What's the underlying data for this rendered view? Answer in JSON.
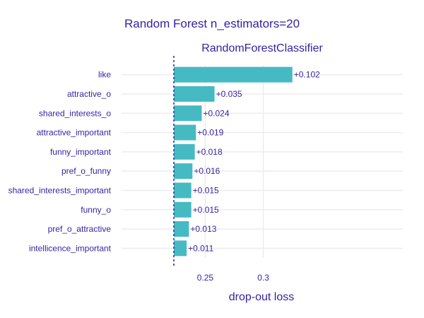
{
  "title": "Random Forest n_estimators=20",
  "chart_data": {
    "type": "bar",
    "orientation": "horizontal",
    "title": "Random Forest n_estimators=20",
    "subtitle": "RandomForestClassifier",
    "xlabel": "drop-out loss",
    "ylabel": "",
    "baseline": 0.223,
    "xlim": [
      0.178,
      0.42
    ],
    "xticks": [
      0.25,
      0.3
    ],
    "xtick_labels": [
      "0.25",
      "0.3"
    ],
    "grid": true,
    "colors": {
      "bar": "#46bac2",
      "text": "#371ea3",
      "baseline": "#371ea3"
    },
    "categories": [
      "like",
      "attractive_o",
      "shared_interests_o",
      "attractive_important",
      "funny_important",
      "pref_o_funny",
      "shared_interests_important",
      "funny_o",
      "pref_o_attractive",
      "intellicence_important"
    ],
    "values": [
      0.102,
      0.035,
      0.024,
      0.019,
      0.018,
      0.016,
      0.015,
      0.015,
      0.013,
      0.011
    ],
    "value_labels": [
      "+0.102",
      "+0.035",
      "+0.024",
      "+0.019",
      "+0.018",
      "+0.016",
      "+0.015",
      "+0.015",
      "+0.013",
      "+0.011"
    ]
  }
}
